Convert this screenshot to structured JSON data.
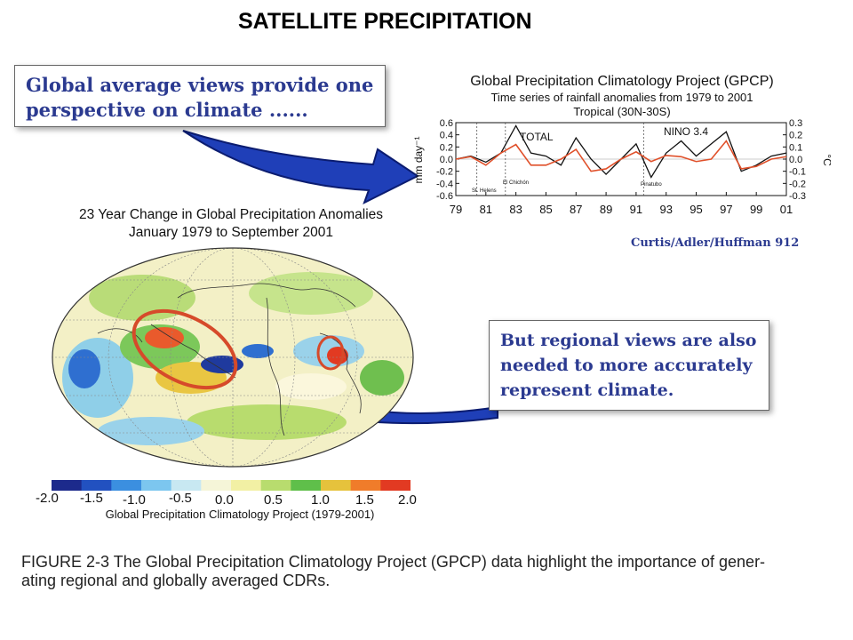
{
  "title": "SATELLITE PRECIPITATION",
  "callouts": {
    "top": [
      "Global average views provide one",
      "perspective on climate ......"
    ],
    "bottom": [
      "But regional views are also",
      "needed to more accurately",
      "represent climate."
    ]
  },
  "timeseries": {
    "title": "Global Precipitation Climatology Project (GPCP)",
    "subtitle": "Time series of rainfall anomalies from 1979 to 2001",
    "region": "Tropical (30N-30S)",
    "y_left_label": "mm day⁻¹",
    "y_right_label": "°C",
    "left_ticks": [
      "0.6",
      "0.4",
      "0.2",
      "0.0",
      "-0.2",
      "-0.4",
      "-0.6"
    ],
    "right_ticks": [
      "0.3",
      "0.2",
      "0.1",
      "0.0",
      "-0.1",
      "-0.2",
      "-0.3"
    ],
    "x_ticks": [
      "79",
      "81",
      "83",
      "85",
      "87",
      "89",
      "91",
      "93",
      "95",
      "97",
      "99",
      "01"
    ],
    "series_labels": {
      "total": "TOTAL",
      "nino": "NINO 3.4"
    },
    "event_labels": [
      "St. Helens",
      "El Chichón",
      "Pinatubo"
    ],
    "credit": "Curtis/Adler/Huffman 912"
  },
  "map": {
    "title": [
      "23 Year Change in Global Precipitation Anomalies",
      "January 1979 to September 2001"
    ],
    "legend_ticks": [
      "-2.0",
      "-1.5",
      "-1.0",
      "-0.5",
      "0.0",
      "0.5",
      "1.0",
      "1.5",
      "2.0"
    ],
    "legend_caption": "Global Precipitation Climatology Project (1979-2001)",
    "legend_colors": [
      "#1c2a8c",
      "#2251c0",
      "#3b8fe0",
      "#7cc6ef",
      "#c8e8f2",
      "#f5f5d8",
      "#f2f0a4",
      "#b8dc6e",
      "#5fbf4a",
      "#e6c23c",
      "#f07c2a",
      "#e23a22"
    ]
  },
  "caption": [
    "FIGURE 2-3  The Global Precipitation Climatology Project (GPCP) data highlight the importance of gener-",
    "ating regional and globally averaged CDRs."
  ],
  "chart_data": {
    "type": "line",
    "title": "Global Precipitation Climatology Project (GPCP)",
    "subtitle": "Time series of rainfall anomalies from 1979 to 2001",
    "ylabel": "mm day⁻¹",
    "ylim": [
      -0.6,
      0.6
    ],
    "y2label": "°C",
    "y2lim": [
      -0.3,
      0.3
    ],
    "x": [
      1979,
      1980,
      1981,
      1982,
      1983,
      1984,
      1985,
      1986,
      1987,
      1988,
      1989,
      1990,
      1991,
      1992,
      1993,
      1994,
      1995,
      1996,
      1997,
      1998,
      1999,
      2000,
      2001
    ],
    "series": [
      {
        "name": "TOTAL",
        "color": "#111111",
        "values": [
          0.0,
          0.05,
          -0.05,
          0.1,
          0.55,
          0.1,
          0.05,
          -0.1,
          0.35,
          0.0,
          -0.25,
          0.0,
          0.25,
          -0.3,
          0.1,
          0.3,
          0.05,
          0.25,
          0.45,
          -0.2,
          -0.1,
          0.05,
          0.1
        ]
      },
      {
        "name": "NINO 3.4",
        "color": "#e0502a",
        "values": [
          0.0,
          0.02,
          -0.05,
          0.05,
          0.12,
          -0.05,
          -0.05,
          0.0,
          0.08,
          -0.1,
          -0.08,
          0.0,
          0.06,
          -0.02,
          0.03,
          0.02,
          -0.02,
          0.0,
          0.15,
          -0.08,
          -0.06,
          0.0,
          0.02
        ]
      }
    ]
  }
}
